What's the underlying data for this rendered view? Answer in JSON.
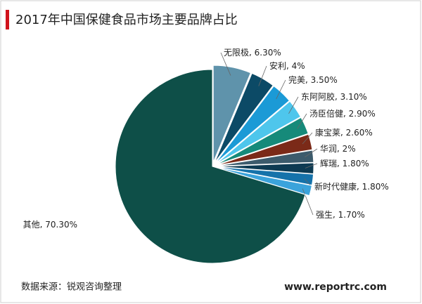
{
  "chart_data": {
    "type": "pie",
    "title": "2017年中国保健食品市场主要品牌占比",
    "categories": [
      "无限极",
      "安利",
      "完美",
      "东阿阿胶",
      "汤臣倍健",
      "康宝莱",
      "华润",
      "辉瑞",
      "新时代健康",
      "强生",
      "其他"
    ],
    "values": [
      6.3,
      4,
      3.5,
      3.1,
      2.9,
      2.6,
      2,
      1.8,
      1.8,
      1.7,
      70.3
    ],
    "value_labels": [
      "6.30%",
      "4%",
      "3.50%",
      "3.10%",
      "2.90%",
      "2.60%",
      "2%",
      "1.80%",
      "1.80%",
      "1.70%",
      "70.30%"
    ],
    "colors": [
      "#5f93ab",
      "#0c4a66",
      "#1b9ad6",
      "#4ec6ec",
      "#168a7a",
      "#7b2a18",
      "#3c5b6c",
      "#0d3a52",
      "#1572aa",
      "#3ba3db",
      "#0e4f48"
    ],
    "source": "数据来源：锐观咨询整理",
    "website": "www.reportrc.com"
  }
}
